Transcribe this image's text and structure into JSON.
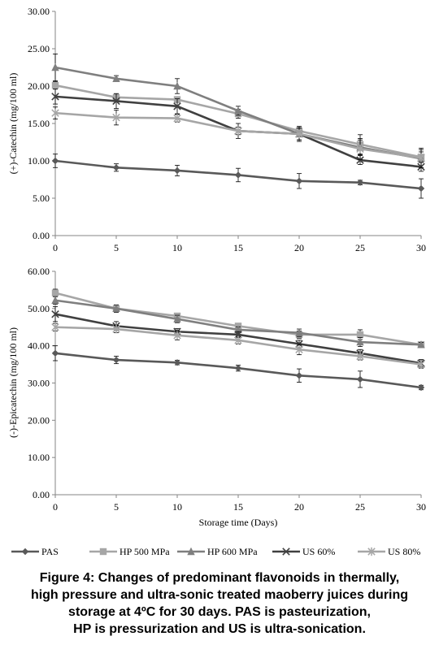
{
  "chart_data": [
    {
      "type": "line",
      "xlabel": "",
      "ylabel": "(+)-Catechin  (mg/100  ml)",
      "x": [
        0,
        5,
        10,
        15,
        20,
        25,
        30
      ],
      "ylim": [
        0,
        30
      ],
      "yticks": [
        "0.00",
        "5.00",
        "10.00",
        "15.00",
        "20.00",
        "25.00",
        "30.00"
      ],
      "grid": false,
      "series": [
        {
          "name": "PAS",
          "values": [
            10.0,
            9.1,
            8.7,
            8.1,
            7.3,
            7.1,
            6.3
          ],
          "errors": [
            0.9,
            0.5,
            0.7,
            0.9,
            1.0,
            0.3,
            1.3
          ]
        },
        {
          "name": "HP 500 MPa",
          "values": [
            20.1,
            18.5,
            18.2,
            16.3,
            14.0,
            12.2,
            10.5
          ],
          "errors": [
            0.5,
            0.4,
            0.4,
            0.6,
            0.6,
            1.3,
            0.7
          ]
        },
        {
          "name": "HP 600 MPa",
          "values": [
            22.5,
            21.0,
            20.0,
            16.7,
            13.6,
            11.8,
            10.3
          ],
          "errors": [
            1.8,
            0.4,
            1.0,
            0.6,
            0.8,
            1.0,
            1.2
          ]
        },
        {
          "name": "US 60%",
          "values": [
            18.6,
            18.0,
            17.3,
            14.0,
            13.6,
            10.1,
            9.2
          ],
          "errors": [
            1.0,
            1.0,
            1.0,
            0.5,
            1.0,
            0.6,
            0.6
          ]
        },
        {
          "name": "US 80%",
          "values": [
            16.4,
            15.8,
            15.7,
            14.0,
            13.6,
            11.6,
            10.4
          ],
          "errors": [
            0.8,
            1.0,
            0.5,
            1.0,
            0.8,
            1.4,
            1.3
          ]
        }
      ]
    },
    {
      "type": "line",
      "xlabel": "Storage time  (Days)",
      "ylabel": "(-)-Epicatechin  (mg/100  ml)",
      "x": [
        0,
        5,
        10,
        15,
        20,
        25,
        30
      ],
      "ylim": [
        0,
        60
      ],
      "yticks": [
        "0.00",
        "10.00",
        "20.00",
        "30.00",
        "40.00",
        "50.00",
        "60.00"
      ],
      "grid": false,
      "series": [
        {
          "name": "PAS",
          "values": [
            38.0,
            36.2,
            35.5,
            34.0,
            32.0,
            31.0,
            28.8
          ],
          "errors": [
            2.0,
            1.0,
            0.6,
            0.8,
            1.8,
            2.2,
            0.6
          ]
        },
        {
          "name": "HP 500 MPa",
          "values": [
            54.2,
            50.0,
            48.0,
            45.3,
            43.0,
            43.0,
            40.3
          ],
          "errors": [
            1.0,
            0.8,
            0.6,
            0.6,
            1.0,
            1.3,
            0.5
          ]
        },
        {
          "name": "HP 600 MPa",
          "values": [
            52.2,
            50.0,
            47.2,
            44.3,
            43.5,
            41.0,
            40.3
          ],
          "errors": [
            1.0,
            1.0,
            1.0,
            0.8,
            1.0,
            1.2,
            0.6
          ]
        },
        {
          "name": "US 60%",
          "values": [
            48.5,
            45.3,
            43.8,
            43.0,
            40.5,
            38.0,
            35.3
          ],
          "errors": [
            2.0,
            1.2,
            0.8,
            0.8,
            1.0,
            1.0,
            1.0
          ]
        },
        {
          "name": "US 80%",
          "values": [
            45.0,
            44.5,
            42.8,
            41.5,
            39.0,
            37.2,
            35.0
          ],
          "errors": [
            1.0,
            1.0,
            1.2,
            1.0,
            1.4,
            1.0,
            1.0
          ]
        }
      ]
    }
  ],
  "x_ticks": [
    "0",
    "5",
    "10",
    "15",
    "20",
    "25",
    "30"
  ],
  "legend": {
    "placement": "bottom",
    "items": [
      {
        "name": "PAS",
        "marker": "diamond",
        "color": "#595959"
      },
      {
        "name": "HP 500 MPa",
        "marker": "square",
        "color": "#a6a6a6"
      },
      {
        "name": "HP 600 MPa",
        "marker": "triangle",
        "color": "#7f7f7f"
      },
      {
        "name": "US 60%",
        "marker": "x",
        "color": "#404040"
      },
      {
        "name": "US 80%",
        "marker": "star",
        "color": "#a6a6a6"
      }
    ]
  },
  "caption": {
    "line1": "Figure 4: Changes of predominant flavonoids in thermally,",
    "line2": "high pressure and ultra-sonic treated maoberry juices during",
    "line3": "storage at 4ºC for 30 days. PAS is pasteurization,",
    "line4": "HP is pressurization and US is ultra-sonication."
  }
}
